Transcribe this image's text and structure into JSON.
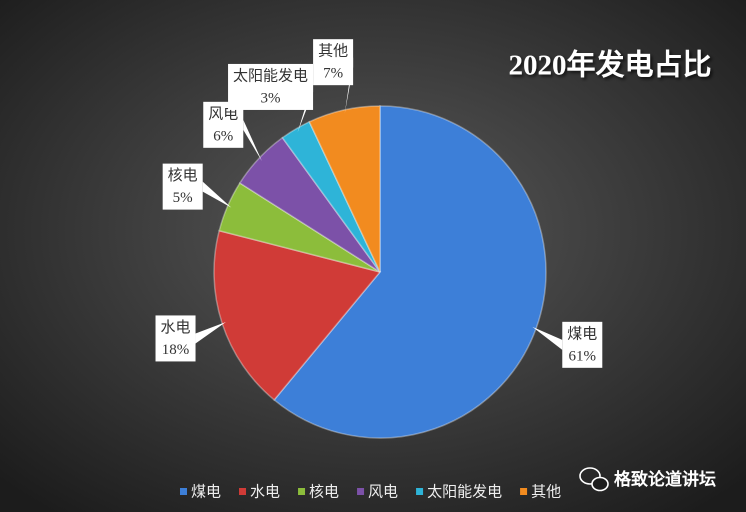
{
  "chart_data": {
    "type": "pie",
    "title": "2020年发电占比",
    "categories": [
      "煤电",
      "水电",
      "核电",
      "风电",
      "太阳能发电",
      "其他"
    ],
    "values": [
      61,
      18,
      5,
      6,
      3,
      7
    ],
    "value_labels": [
      "61%",
      "18%",
      "5%",
      "6%",
      "3%",
      "7%"
    ],
    "colors": [
      "#3d7fd8",
      "#d03b37",
      "#8cbd3b",
      "#7c51a8",
      "#2eb4d8",
      "#f28b1f"
    ],
    "legend": "bottom"
  },
  "watermark": "格致论道讲坛"
}
